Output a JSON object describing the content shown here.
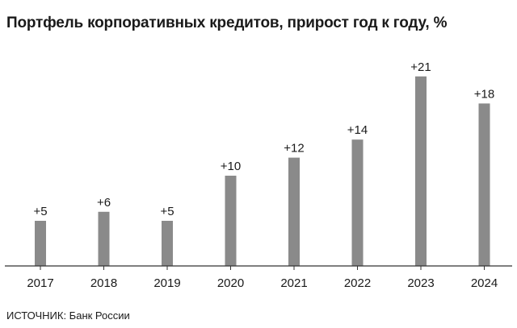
{
  "title": "Портфель корпоративных кредитов, прирост год к году, %",
  "source": "ИСТОЧНИК: Банк России",
  "colors": {
    "bar": "#8a8a8a",
    "axis": "#333333",
    "text": "#1a1a1a"
  },
  "chart_data": {
    "type": "bar",
    "title": "Портфель корпоративных кредитов, прирост год к году, %",
    "categories": [
      "2017",
      "2018",
      "2019",
      "2020",
      "2021",
      "2022",
      "2023",
      "2024"
    ],
    "values": [
      5,
      6,
      5,
      10,
      12,
      14,
      21,
      18
    ],
    "data_labels": [
      "+5",
      "+6",
      "+5",
      "+10",
      "+12",
      "+14",
      "+21",
      "+18"
    ],
    "xlabel": "",
    "ylabel": "",
    "ylim": [
      0,
      25
    ],
    "grid": false,
    "legend": "none"
  }
}
